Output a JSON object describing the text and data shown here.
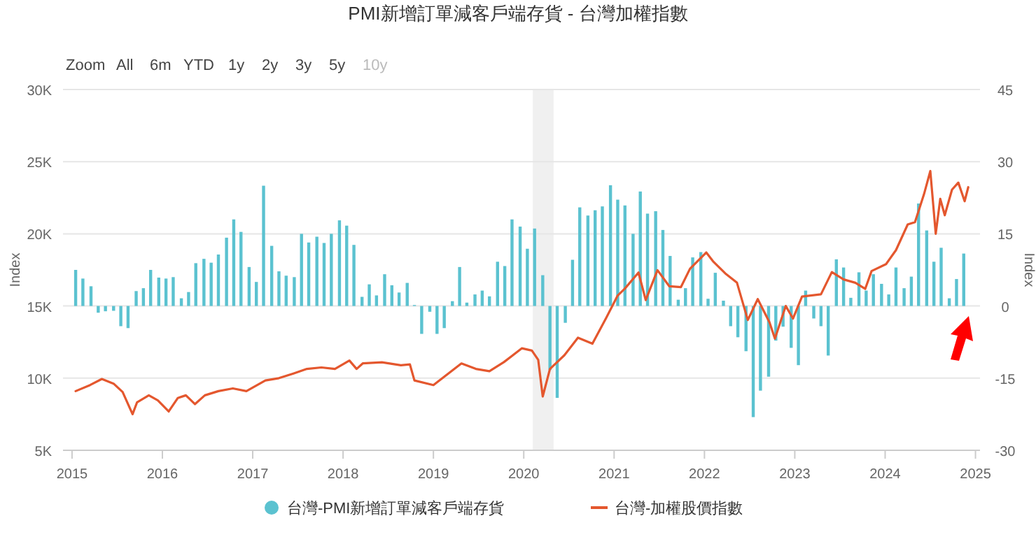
{
  "chart_data": {
    "type": "bar",
    "title": "PMI新增訂單減客戶端存貨 - 台灣加權指數",
    "annotations": [
      "Zoom",
      "All",
      "6m",
      "YTD",
      "1y",
      "2y",
      "3y",
      "5y",
      "10y"
    ],
    "ylabel": "Index",
    "y2label": "Index",
    "xlim": [
      2014.9,
      2025.05
    ],
    "xticks": [
      2015,
      2016,
      2017,
      2018,
      2019,
      2020,
      2021,
      2022,
      2023,
      2024,
      2025
    ],
    "ylim": [
      5000,
      30000
    ],
    "yticks": [
      {
        "value": 5000,
        "label": "5K"
      },
      {
        "value": 10000,
        "label": "10K"
      },
      {
        "value": 15000,
        "label": "15K"
      },
      {
        "value": 20000,
        "label": "20K"
      },
      {
        "value": 25000,
        "label": "25K"
      },
      {
        "value": 30000,
        "label": "30K"
      }
    ],
    "y2lim": [
      -30,
      45
    ],
    "y2ticks": [
      -30,
      -15,
      0,
      15,
      30,
      45
    ],
    "grid": "y",
    "legend": "bottom",
    "bands": [
      {
        "axis": "x",
        "from": 2020.1,
        "to": 2020.33,
        "color": "#f0f0f0"
      }
    ],
    "series": [
      {
        "name": "台灣-PMI新增訂單減客戶端存貨",
        "axis": "y2",
        "color": "#5bc2d0",
        "x": [
          2015.04,
          2015.12,
          2015.21,
          2015.29,
          2015.37,
          2015.46,
          2015.54,
          2015.62,
          2015.71,
          2015.79,
          2015.87,
          2015.96,
          2016.04,
          2016.12,
          2016.21,
          2016.29,
          2016.37,
          2016.46,
          2016.54,
          2016.62,
          2016.71,
          2016.79,
          2016.87,
          2016.96,
          2017.04,
          2017.12,
          2017.21,
          2017.29,
          2017.37,
          2017.46,
          2017.54,
          2017.62,
          2017.71,
          2017.79,
          2017.87,
          2017.96,
          2018.04,
          2018.12,
          2018.21,
          2018.29,
          2018.37,
          2018.46,
          2018.54,
          2018.62,
          2018.71,
          2018.79,
          2018.87,
          2018.96,
          2019.04,
          2019.12,
          2019.21,
          2019.29,
          2019.37,
          2019.46,
          2019.54,
          2019.62,
          2019.71,
          2019.79,
          2019.87,
          2019.96,
          2020.04,
          2020.12,
          2020.21,
          2020.29,
          2020.37,
          2020.46,
          2020.54,
          2020.62,
          2020.71,
          2020.79,
          2020.87,
          2020.96,
          2021.04,
          2021.12,
          2021.21,
          2021.29,
          2021.37,
          2021.46,
          2021.54,
          2021.62,
          2021.71,
          2021.79,
          2021.87,
          2021.96,
          2022.04,
          2022.12,
          2022.21,
          2022.29,
          2022.37,
          2022.46,
          2022.54,
          2022.62,
          2022.71,
          2022.79,
          2022.87,
          2022.96,
          2023.04,
          2023.12,
          2023.21,
          2023.29,
          2023.37,
          2023.46,
          2023.54,
          2023.62,
          2023.71,
          2023.79,
          2023.87,
          2023.96,
          2024.04,
          2024.12,
          2024.21,
          2024.29,
          2024.37,
          2024.46,
          2024.54,
          2024.62,
          2024.71,
          2024.79,
          2024.87
        ],
        "values": [
          7.5,
          5.7,
          4.1,
          -1.4,
          -1.1,
          -1.0,
          -4.2,
          -4.6,
          3.1,
          3.7,
          7.5,
          5.9,
          5.7,
          6.0,
          1.6,
          2.9,
          8.9,
          9.8,
          9.0,
          10.7,
          14.2,
          18.0,
          15.4,
          8.1,
          5.0,
          25.0,
          12.5,
          7.2,
          6.3,
          6.0,
          15.0,
          13.2,
          14.4,
          13.1,
          15.0,
          17.8,
          16.7,
          12.7,
          1.9,
          4.5,
          2.2,
          6.6,
          4.3,
          2.8,
          4.8,
          0.2,
          -5.8,
          -1.2,
          -5.8,
          -4.6,
          1.0,
          8.1,
          0.7,
          2.4,
          3.2,
          2.0,
          9.2,
          8.3,
          18.0,
          16.5,
          11.9,
          16.1,
          6.4,
          -13.3,
          -19.1,
          -3.5,
          9.6,
          20.5,
          18.8,
          19.9,
          20.7,
          25.1,
          22.1,
          20.9,
          15.0,
          23.8,
          19.2,
          19.7,
          15.8,
          10.4,
          1.3,
          3.7,
          10.1,
          11.2,
          1.5,
          6.9,
          1.1,
          -4.2,
          -6.5,
          -9.4,
          -23.1,
          -17.6,
          -14.7,
          -7.2,
          -4.3,
          -8.7,
          -12.3,
          3.2,
          -2.6,
          -4.2,
          -10.3,
          9.7,
          8.0,
          1.7,
          7.0,
          3.2,
          6.6,
          4.6,
          2.4,
          8.0,
          3.7,
          6.1,
          21.3,
          15.7,
          9.2,
          12.1,
          1.6,
          5.6,
          10.9
        ]
      },
      {
        "name": "台灣-加權股價指數",
        "type": "line",
        "color": "#e4572e",
        "x": [
          2015.04,
          2015.2,
          2015.33,
          2015.46,
          2015.56,
          2015.67,
          2015.72,
          2015.85,
          2015.95,
          2016.07,
          2016.17,
          2016.26,
          2016.36,
          2016.47,
          2016.62,
          2016.78,
          2016.93,
          2017.14,
          2017.29,
          2017.45,
          2017.6,
          2017.76,
          2017.91,
          2018.07,
          2018.15,
          2018.22,
          2018.43,
          2018.64,
          2018.74,
          2018.79,
          2019.0,
          2019.31,
          2019.47,
          2019.62,
          2019.78,
          2019.98,
          2020.09,
          2020.16,
          2020.21,
          2020.29,
          2020.45,
          2020.6,
          2020.76,
          2020.91,
          2021.04,
          2021.12,
          2021.27,
          2021.35,
          2021.48,
          2021.61,
          2021.74,
          2021.84,
          2022.02,
          2022.1,
          2022.23,
          2022.36,
          2022.48,
          2022.59,
          2022.72,
          2022.78,
          2022.9,
          2022.98,
          2023.08,
          2023.29,
          2023.41,
          2023.54,
          2023.67,
          2023.78,
          2023.85,
          2024.01,
          2024.12,
          2024.25,
          2024.33,
          2024.43,
          2024.5,
          2024.56,
          2024.61,
          2024.66,
          2024.74,
          2024.81,
          2024.88,
          2024.92
        ],
        "values": [
          9100,
          9520,
          9940,
          9620,
          9040,
          7500,
          8330,
          8810,
          8460,
          7690,
          8620,
          8810,
          8200,
          8810,
          9100,
          9290,
          9100,
          9840,
          10000,
          10320,
          10640,
          10740,
          10640,
          11220,
          10640,
          11030,
          11100,
          10890,
          10950,
          9840,
          9520,
          11020,
          10640,
          10480,
          11110,
          12070,
          11910,
          11270,
          8730,
          10640,
          11590,
          12800,
          12390,
          14140,
          15730,
          16210,
          17320,
          15410,
          17480,
          16370,
          16310,
          17580,
          18710,
          18060,
          17260,
          16610,
          14030,
          15480,
          13870,
          12740,
          15000,
          14130,
          15650,
          15810,
          17350,
          16840,
          16610,
          16190,
          17420,
          17900,
          18870,
          20650,
          20810,
          22740,
          24350,
          20000,
          22420,
          21290,
          23060,
          23550,
          22260,
          23230
        ]
      }
    ]
  }
}
